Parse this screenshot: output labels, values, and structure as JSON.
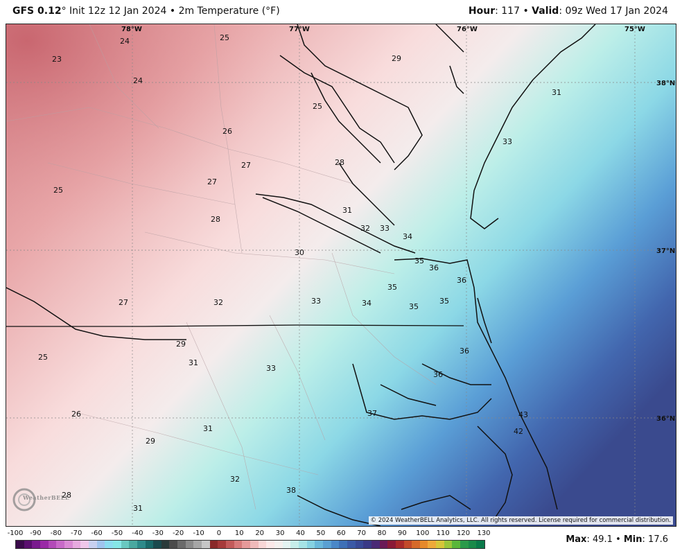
{
  "header": {
    "model": "GFS 0.12",
    "degree": "°",
    "init": "Init 12z 12 Jan 2024",
    "sep": "•",
    "field": "2m Temperature (°F)",
    "hour_label": "Hour",
    "hour_value": ": 117",
    "valid_label": "Valid",
    "valid_value": ": 09z Wed 17 Jan 2024"
  },
  "map": {
    "lon_labels": [
      "78°W",
      "77°W",
      "76°W",
      "75°W"
    ],
    "lat_labels": [
      "38°N",
      "37°N",
      "36°N"
    ],
    "temperature_labels": [
      "24",
      "23",
      "24",
      "25",
      "25",
      "29",
      "31",
      "26",
      "27",
      "27",
      "33",
      "28",
      "25",
      "28",
      "31",
      "32",
      "33",
      "34",
      "30",
      "35",
      "36",
      "35",
      "36",
      "27",
      "32",
      "33",
      "34",
      "35",
      "35",
      "29",
      "25",
      "31",
      "33",
      "36",
      "36",
      "26",
      "37",
      "43",
      "42",
      "31",
      "29",
      "32",
      "38",
      "28",
      "31"
    ],
    "copyright": "© 2024 WeatherBELL Analytics, LLC. All rights reserved. License required for commercial distribution.",
    "logo_text": "WeatherBELL"
  },
  "colorbar": {
    "ticks": [
      "-100",
      "-90",
      "-80",
      "-70",
      "-60",
      "-50",
      "-40",
      "-30",
      "-20",
      "-10",
      "0",
      "10",
      "20",
      "30",
      "40",
      "50",
      "60",
      "70",
      "80",
      "90",
      "100",
      "110",
      "120",
      "130"
    ],
    "colors": [
      "#3a0a4a",
      "#5a0f6e",
      "#7a1a8e",
      "#9a2aa6",
      "#b34ab8",
      "#c86ac8",
      "#d98ad4",
      "#e6aadf",
      "#f0c8ea",
      "#c8d0f0",
      "#a0c4ee",
      "#8cdcf0",
      "#86e6e6",
      "#6ac8c0",
      "#4aa8a0",
      "#2e8a8a",
      "#1a6a6a",
      "#1a4a4e",
      "#2a3a3a",
      "#4a4a4a",
      "#6a6a6a",
      "#8a8a8a",
      "#a6a6a6",
      "#c6c6c6",
      "#8a2a2a",
      "#a63a3a",
      "#c25a5a",
      "#d67a7a",
      "#e69a9a",
      "#f0baba",
      "#f8d6d6",
      "#fbe8e8",
      "#f4f0ee",
      "#e4f4f2",
      "#c6eeea",
      "#a6e4e6",
      "#86d2e2",
      "#6ab8da",
      "#5aa0d2",
      "#4a88c8",
      "#3e70b6",
      "#3a5aa6",
      "#384a96",
      "#3a3a86",
      "#4a2a76",
      "#6a1a56",
      "#8a1a36",
      "#a82a2a",
      "#c24a2a",
      "#d66a2a",
      "#e68a2a",
      "#eeaa3a",
      "#d6c63a",
      "#9ac63a",
      "#5ab63a",
      "#2a9a4a",
      "#1a8a4a",
      "#0a7a4a"
    ]
  },
  "stats": {
    "max_label": "Max",
    "max_value": ": 49.1",
    "sep": "•",
    "min_label": "Min",
    "min_value": ": 17.6"
  }
}
